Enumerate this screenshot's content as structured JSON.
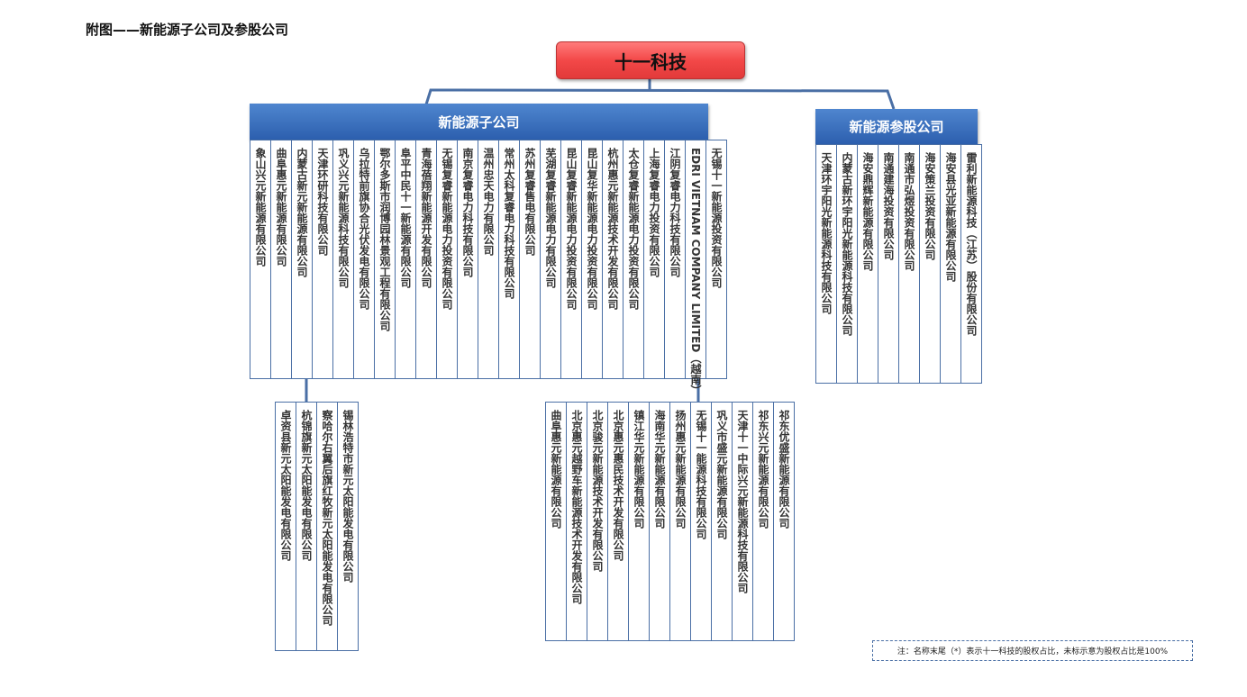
{
  "title": "附图——新能源子公司及参股公司",
  "root": "十一科技",
  "subsidiaries": {
    "header": "新能源子公司",
    "companies": [
      "象山兴元新能源有限公司",
      "曲阜惠元新能源有限公司",
      "内蒙古新元新能源有限公司",
      "天津环研科技有限公司",
      "巩义兴元新能源科技有限公司",
      "乌拉特前旗协合光伏发电有限公司",
      "鄂尔多斯市润博园林景观工程有限公司",
      "阜平中民十一新能源有限公司",
      "青海蓓翔新能源开发有限公司",
      "无锡复睿新能源电力投资有限公司",
      "南京复睿电力科技有限公司",
      "温州忠天电力有限公司",
      "常州太科复睿电力科技有限公司",
      "苏州复睿售电有限公司",
      "芜湖复睿新能源电力有限公司",
      "昆山复睿新能源电力投资有限公司",
      "昆山复华新能源电力投资有限公司",
      "杭州惠元新能源技术开发有限公司",
      "太仓复睿新能源电力投资有限公司",
      "上海复睿电力投资有限公司",
      "江阴复睿电力科技有限公司",
      "EDRI VIETNAM COMPANY LIMITED（越南）",
      "无锡十一新能源投资有限公司"
    ],
    "sub_group_a": [
      "卓资县新元太阳能发电有限公司",
      "杭锦旗新元太阳能发电有限公司",
      "察哈尔右翼后旗红牧新元太阳能发电有限公司",
      "锡林浩特市新元太阳能发电有限公司"
    ],
    "sub_group_b": [
      "曲阜惠元新能源有限公司",
      "北京惠元越野车新能源技术开发有限公司",
      "北京骏元新能源技术开发有限公司",
      "北京惠元惠民技术开发有限公司",
      "镇江华元新能源有限公司",
      "海南华元新能源有限公司",
      "扬州惠元新能源有限公司",
      "无锡十一能源科技有限公司",
      "巩义市盛元新能源有限公司",
      "天津十一中际兴元新能源科技有限公司",
      "祁东兴元新能源有限公司",
      "祁东优盛新能源有限公司"
    ]
  },
  "affiliates": {
    "header": "新能源参股公司",
    "companies": [
      "天津环宇阳光新能源科技有限公司",
      "内蒙古新环宇阳光新能源科技有限公司",
      "海安鼎辉新能源有限公司",
      "南通建海投资有限公司",
      "南通市弘煜投资有限公司",
      "海安策兰投资有限公司",
      "海安县光亚新能源有限公司",
      "雷利新能源科技（江苏）股份有限公司"
    ]
  },
  "note": "注：名称末尾（*）表示十一科技的股权占比，未标示意为股权占比是100%",
  "colors": {
    "root": "#f34848",
    "header": "#2c5fae",
    "line": "#4a6fa5"
  }
}
